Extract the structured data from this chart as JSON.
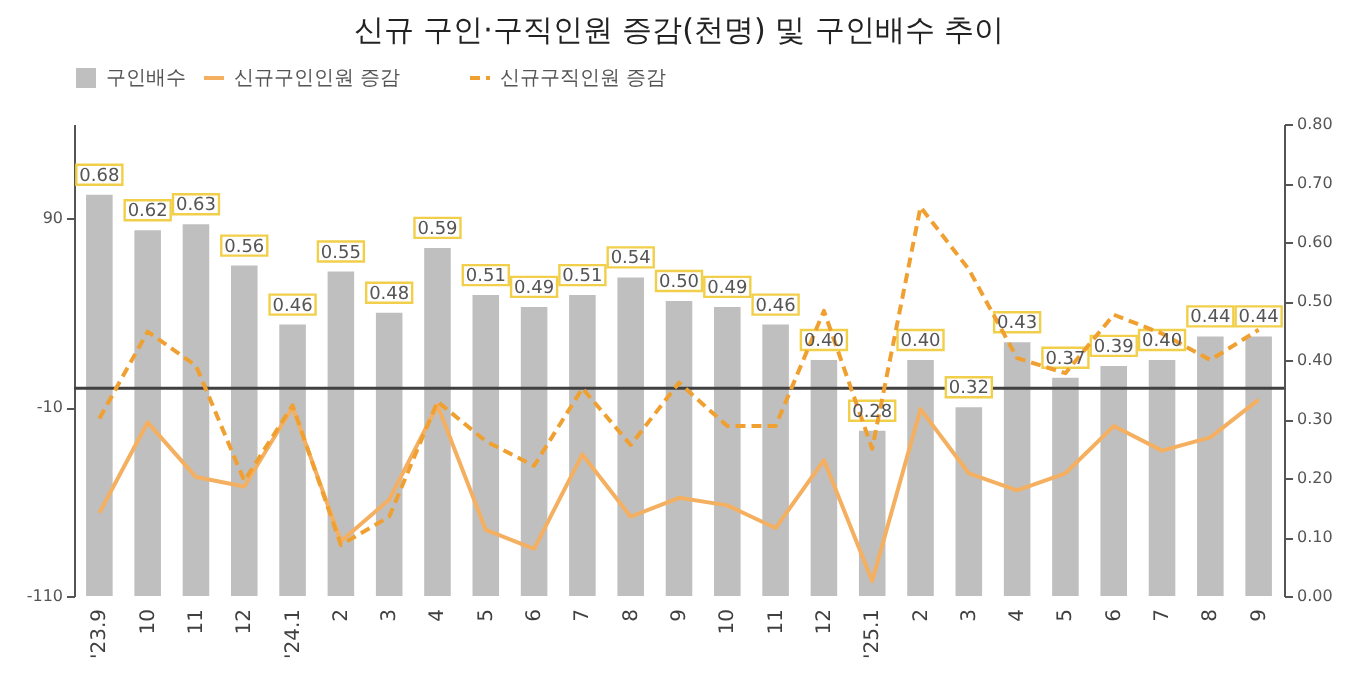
{
  "chart_data": {
    "type": "bar",
    "title": "신규 구인·구직인원 증감(천명) 및 구인배수 추이",
    "categories": [
      "'23.9",
      "10",
      "11",
      "12",
      "'24.1",
      "2",
      "3",
      "4",
      "5",
      "6",
      "7",
      "8",
      "9",
      "10",
      "11",
      "12",
      "'25.1",
      "2",
      "3",
      "4",
      "5",
      "6",
      "7",
      "8",
      "9"
    ],
    "series": [
      {
        "name": "구인배수",
        "axis": "y2",
        "color": "#bfbfbf",
        "values": [
          0.68,
          0.62,
          0.63,
          0.56,
          0.46,
          0.55,
          0.48,
          0.59,
          0.51,
          0.49,
          0.51,
          0.54,
          0.5,
          0.49,
          0.46,
          0.4,
          0.28,
          0.4,
          0.32,
          0.43,
          0.37,
          0.39,
          0.4,
          0.44,
          0.44
        ],
        "value_labels": [
          "0.68",
          "0.62",
          "0.63",
          "0.56",
          "0.46",
          "0.55",
          "0.48",
          "0.59",
          "0.51",
          "0.49",
          "0.51",
          "0.54",
          "0.50",
          "0.49",
          "0.46",
          "0.40",
          "0.28",
          "0.40",
          "0.32",
          "0.43",
          "0.37",
          "0.39",
          "0.40",
          "0.44",
          "0.44"
        ]
      },
      {
        "name": "신규구인인원 증감",
        "type": "line",
        "line_style": "solid",
        "color": "#f4b060",
        "values": [
          -66,
          -18,
          -47,
          -52,
          -10,
          -81,
          -59,
          -9,
          -75,
          -85,
          -35,
          -68,
          -58,
          -62,
          -74,
          -38,
          -102,
          -11,
          -45,
          -54,
          -45,
          -20,
          -33,
          -26,
          -6
        ]
      },
      {
        "name": "신규구직인원 증감",
        "type": "line",
        "line_style": "dashed",
        "color": "#f0a030",
        "values": [
          -16,
          30,
          12,
          -49,
          -9,
          -83,
          -68,
          -7,
          -28,
          -41,
          0,
          -30,
          3,
          -20,
          -20,
          41,
          -32,
          96,
          63,
          16,
          8,
          39,
          29,
          15,
          31
        ]
      }
    ],
    "ylim": [
      -110,
      140
    ],
    "yticks": [
      -110,
      -10,
      90
    ],
    "y2lim": [
      0,
      0.8
    ],
    "y2ticks": [
      {
        "value": 0,
        "label": "0.00"
      },
      {
        "value": 0.1,
        "label": "0.10"
      },
      {
        "value": 0.2,
        "label": "0.20"
      },
      {
        "value": 0.3,
        "label": "0.30"
      },
      {
        "value": 0.4,
        "label": "0.40"
      },
      {
        "value": 0.5,
        "label": "0.50"
      },
      {
        "value": 0.6,
        "label": "0.60"
      },
      {
        "value": 0.7,
        "label": "0.70"
      },
      {
        "value": 0.8,
        "label": "0.80"
      }
    ],
    "ref_lines": [
      {
        "axis": "y",
        "value": 0,
        "color": "#404040"
      }
    ],
    "legend": "top"
  }
}
